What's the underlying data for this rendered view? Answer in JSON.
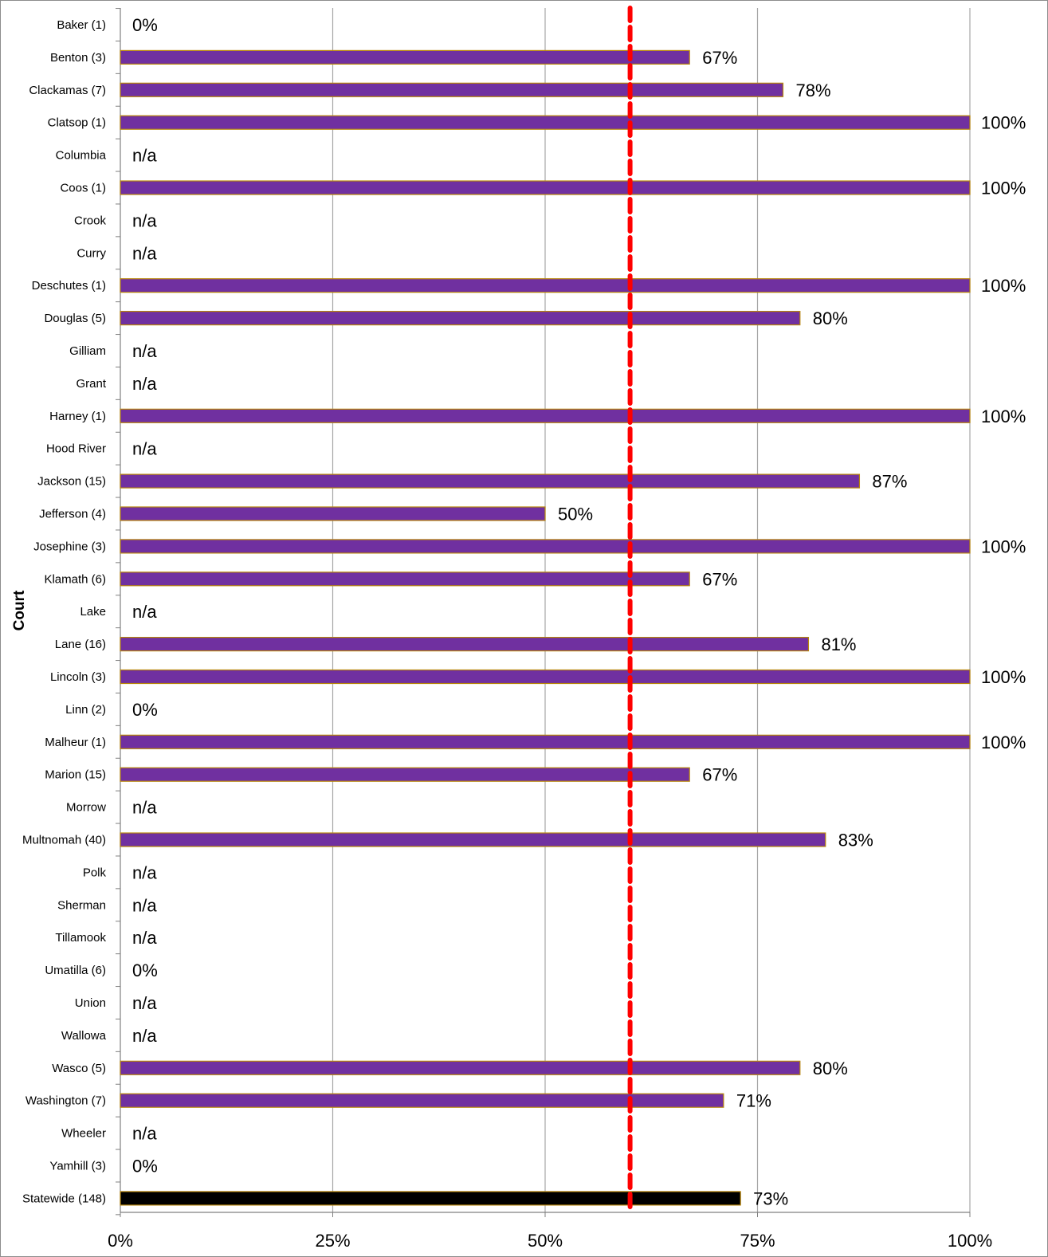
{
  "chart_data": {
    "type": "bar",
    "orientation": "horizontal",
    "title": "",
    "xlabel": "",
    "ylabel": "Court",
    "xlim": [
      0,
      100
    ],
    "x_ticks": [
      "0%",
      "25%",
      "50%",
      "75%",
      "100%"
    ],
    "grid": "vertical",
    "legend": "none",
    "reference_line": {
      "value": 60,
      "style": "dashed",
      "color": "#ff0000"
    },
    "colors": {
      "bar": "#7030a0",
      "bar_border": "#b8860b",
      "statewide_bar": "#000000",
      "grid": "#a6a6a6"
    },
    "categories": [
      "Baker (1)",
      "Benton (3)",
      "Clackamas (7)",
      "Clatsop (1)",
      "Columbia",
      "Coos (1)",
      "Crook",
      "Curry",
      "Deschutes (1)",
      "Douglas (5)",
      "Gilliam",
      "Grant",
      "Harney (1)",
      "Hood River",
      "Jackson (15)",
      "Jefferson (4)",
      "Josephine (3)",
      "Klamath (6)",
      "Lake",
      "Lane (16)",
      "Lincoln (3)",
      "Linn (2)",
      "Malheur (1)",
      "Marion (15)",
      "Morrow",
      "Multnomah (40)",
      "Polk",
      "Sherman",
      "Tillamook",
      "Umatilla (6)",
      "Union",
      "Wallowa",
      "Wasco (5)",
      "Washington (7)",
      "Wheeler",
      "Yamhill (3)",
      "Statewide (148)"
    ],
    "values": [
      0,
      67,
      78,
      100,
      null,
      100,
      null,
      null,
      100,
      80,
      null,
      null,
      100,
      null,
      87,
      50,
      100,
      67,
      null,
      81,
      100,
      0,
      100,
      67,
      null,
      83,
      null,
      null,
      null,
      0,
      null,
      null,
      80,
      71,
      null,
      0,
      73
    ],
    "data_labels": [
      "0%",
      "67%",
      "78%",
      "100%",
      "n/a",
      "100%",
      "n/a",
      "n/a",
      "100%",
      "80%",
      "n/a",
      "n/a",
      "100%",
      "n/a",
      "87%",
      "50%",
      "100%",
      "67%",
      "n/a",
      "81%",
      "100%",
      "0%",
      "100%",
      "67%",
      "n/a",
      "83%",
      "n/a",
      "n/a",
      "n/a",
      "0%",
      "n/a",
      "n/a",
      "80%",
      "71%",
      "n/a",
      "0%",
      "73%"
    ]
  }
}
